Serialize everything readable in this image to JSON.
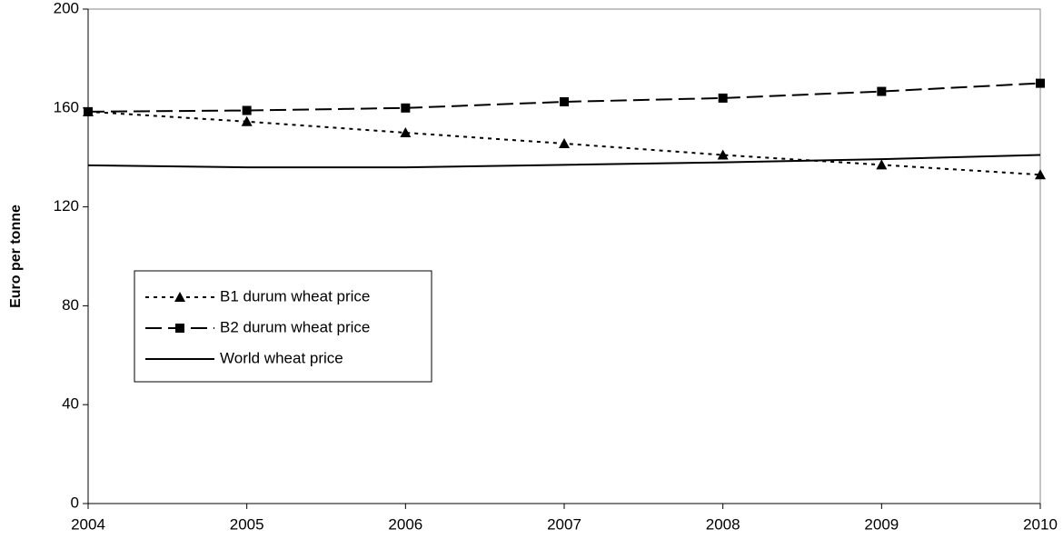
{
  "chart_data": {
    "type": "line",
    "y_label": "Euro per tonne",
    "x": [
      2004,
      2005,
      2006,
      2007,
      2008,
      2009,
      2010
    ],
    "xlim": [
      2004,
      2010
    ],
    "xticks": [
      2004,
      2005,
      2006,
      2007,
      2008,
      2009,
      2010
    ],
    "ylim": [
      0,
      200
    ],
    "yticks": [
      0,
      40,
      80,
      120,
      160,
      200
    ],
    "grid": false,
    "legend": "left",
    "series": [
      {
        "name": "B1 durum wheat price",
        "color": "#000000",
        "marker": "triangle",
        "dash": "dotted",
        "values": [
          158.5,
          154.5,
          150,
          145.6,
          141,
          137,
          133
        ]
      },
      {
        "name": "B2 durum wheat price",
        "color": "#000000",
        "marker": "square",
        "dash": "dashed",
        "values": [
          158.5,
          159,
          160,
          162.5,
          164,
          166.7,
          170
        ]
      },
      {
        "name": "World wheat price",
        "color": "#000000",
        "marker": "none",
        "dash": "solid",
        "values": [
          136.8,
          136,
          136,
          137,
          138,
          139.3,
          141
        ]
      }
    ]
  }
}
